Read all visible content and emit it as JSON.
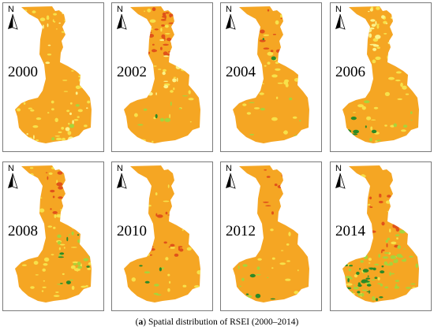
{
  "panels": [
    {
      "year": "2000",
      "north": "N"
    },
    {
      "year": "2002",
      "north": "N"
    },
    {
      "year": "2004",
      "north": "N"
    },
    {
      "year": "2006",
      "north": "N"
    },
    {
      "year": "2008",
      "north": "N"
    },
    {
      "year": "2010",
      "north": "N"
    },
    {
      "year": "2012",
      "north": "N"
    },
    {
      "year": "2014",
      "north": "N"
    }
  ],
  "caption": {
    "letter": "a",
    "text": "Spatial distribution of RSEI (2000–2014)"
  },
  "colors": {
    "base": "#f5a623",
    "light": "#f7e14a",
    "pale": "#fbf38a",
    "red": "#e0521a",
    "green_light": "#a8d43a",
    "green_dark": "#2c8a26",
    "frame": "#7a7a7a"
  }
}
